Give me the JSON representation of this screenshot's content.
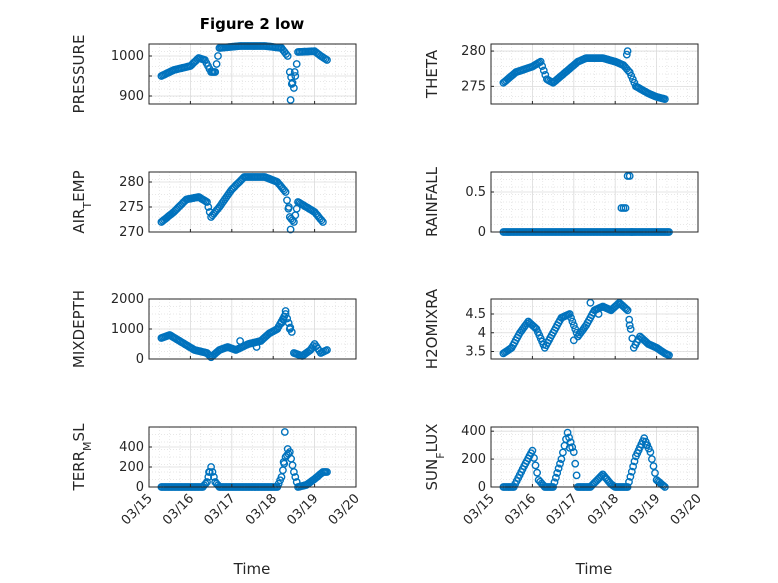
{
  "figure": {
    "title": "Figure 2 low",
    "xlabel": "Time"
  },
  "colors": {
    "marker": "#0072BD",
    "grid": "#e0e0e0",
    "axis": "#262626"
  },
  "chart_data": [
    {
      "type": "scatter",
      "title": "Figure 2 low",
      "ylabel": "PRESSURE",
      "xlabel": "",
      "ylim": [
        880,
        1030
      ],
      "yticks": [
        900,
        950,
        1000
      ],
      "ytick_labels": [
        "900",
        "",
        "1000"
      ],
      "xlim": [
        "03/15",
        "03/20"
      ],
      "xticks": [
        "03/15",
        "03/16",
        "03/17",
        "03/18",
        "03/19",
        "03/20"
      ],
      "show_xtick_labels": false,
      "grid": true,
      "anchors": [
        [
          0.3,
          950
        ],
        [
          0.6,
          965
        ],
        [
          1.0,
          975
        ],
        [
          1.2,
          995
        ],
        [
          1.35,
          990
        ],
        [
          1.5,
          960
        ],
        [
          1.6,
          960
        ],
        [
          1.7,
          1020
        ],
        [
          2.2,
          1025
        ],
        [
          2.8,
          1025
        ],
        [
          3.2,
          1020
        ],
        [
          3.35,
          1000
        ],
        [
          3.4,
          960
        ],
        [
          3.5,
          920
        ],
        [
          3.6,
          1010
        ],
        [
          4.0,
          1012
        ],
        [
          4.15,
          1000
        ],
        [
          4.3,
          990
        ]
      ],
      "extra_points": [
        [
          3.42,
          890
        ],
        [
          3.45,
          930
        ],
        [
          3.52,
          960
        ]
      ]
    },
    {
      "type": "scatter",
      "ylabel": "THETA",
      "ylim": [
        272.5,
        281
      ],
      "yticks": [
        275,
        280
      ],
      "ytick_labels": [
        "275",
        "280"
      ],
      "xlim": [
        "03/15",
        "03/20"
      ],
      "xticks": [
        "03/15",
        "03/16",
        "03/17",
        "03/18",
        "03/19",
        "03/20"
      ],
      "show_xtick_labels": false,
      "grid": true,
      "anchors": [
        [
          0.3,
          275.5
        ],
        [
          0.6,
          277
        ],
        [
          1.0,
          277.8
        ],
        [
          1.2,
          278.5
        ],
        [
          1.35,
          276
        ],
        [
          1.5,
          275.5
        ],
        [
          1.8,
          277
        ],
        [
          2.1,
          278.5
        ],
        [
          2.3,
          279
        ],
        [
          2.7,
          279
        ],
        [
          3.0,
          278.5
        ],
        [
          3.2,
          278
        ],
        [
          3.35,
          277
        ],
        [
          3.5,
          275
        ],
        [
          3.8,
          274
        ],
        [
          4.0,
          273.5
        ],
        [
          4.2,
          273.2
        ]
      ],
      "extra_points": [
        [
          3.3,
          280
        ],
        [
          3.28,
          279.5
        ]
      ]
    },
    {
      "type": "scatter",
      "ylabel": "AIR_TEMP",
      "ylim": [
        270,
        282
      ],
      "yticks": [
        270,
        275,
        280
      ],
      "ytick_labels": [
        "270",
        "275",
        "280"
      ],
      "xlim": [
        "03/15",
        "03/20"
      ],
      "xticks": [
        "03/15",
        "03/16",
        "03/17",
        "03/18",
        "03/19",
        "03/20"
      ],
      "show_xtick_labels": false,
      "grid": true,
      "anchors": [
        [
          0.3,
          272
        ],
        [
          0.6,
          274
        ],
        [
          0.9,
          276.5
        ],
        [
          1.2,
          277
        ],
        [
          1.4,
          276
        ],
        [
          1.5,
          273
        ],
        [
          1.7,
          275
        ],
        [
          2.0,
          278.5
        ],
        [
          2.3,
          281
        ],
        [
          2.8,
          281
        ],
        [
          3.1,
          280
        ],
        [
          3.3,
          278
        ],
        [
          3.4,
          273
        ],
        [
          3.5,
          272
        ],
        [
          3.6,
          276
        ],
        [
          3.8,
          275
        ],
        [
          4.0,
          274
        ],
        [
          4.2,
          272
        ]
      ],
      "extra_points": [
        [
          3.42,
          270.5
        ],
        [
          3.38,
          275
        ]
      ]
    },
    {
      "type": "scatter",
      "ylabel": "RAINFALL",
      "ylim": [
        0,
        0.75
      ],
      "yticks": [
        0,
        0.5
      ],
      "ytick_labels": [
        "0",
        "0.5"
      ],
      "xlim": [
        "03/15",
        "03/20"
      ],
      "xticks": [
        "03/15",
        "03/16",
        "03/17",
        "03/18",
        "03/19",
        "03/20"
      ],
      "show_xtick_labels": false,
      "grid": true,
      "anchors": [
        [
          0.3,
          0
        ],
        [
          3.1,
          0
        ],
        [
          3.2,
          0
        ],
        [
          4.3,
          0
        ]
      ],
      "extra_points": [
        [
          3.15,
          0.3
        ],
        [
          3.2,
          0.3
        ],
        [
          3.25,
          0.3
        ],
        [
          3.3,
          0.7
        ],
        [
          3.35,
          0.7
        ],
        [
          3.4,
          0
        ]
      ]
    },
    {
      "type": "scatter",
      "ylabel": "MIXDEPTH",
      "ylim": [
        0,
        2000
      ],
      "yticks": [
        0,
        1000,
        2000
      ],
      "ytick_labels": [
        "0",
        "1000",
        "2000"
      ],
      "xlim": [
        "03/15",
        "03/20"
      ],
      "xticks": [
        "03/15",
        "03/16",
        "03/17",
        "03/18",
        "03/19",
        "03/20"
      ],
      "show_xtick_labels": false,
      "grid": true,
      "anchors": [
        [
          0.3,
          700
        ],
        [
          0.5,
          800
        ],
        [
          0.8,
          550
        ],
        [
          1.1,
          300
        ],
        [
          1.4,
          200
        ],
        [
          1.5,
          60
        ],
        [
          1.7,
          300
        ],
        [
          1.9,
          400
        ],
        [
          2.1,
          300
        ],
        [
          2.4,
          500
        ],
        [
          2.7,
          600
        ],
        [
          2.9,
          850
        ],
        [
          3.1,
          1000
        ],
        [
          3.3,
          1500
        ],
        [
          3.45,
          900
        ],
        [
          3.5,
          200
        ],
        [
          3.7,
          100
        ],
        [
          3.9,
          300
        ],
        [
          4.0,
          500
        ],
        [
          4.15,
          200
        ],
        [
          4.3,
          300
        ]
      ],
      "extra_points": [
        [
          3.3,
          1600
        ],
        [
          3.25,
          1300
        ],
        [
          3.2,
          1200
        ],
        [
          3.4,
          1000
        ],
        [
          2.2,
          600
        ],
        [
          2.6,
          400
        ]
      ]
    },
    {
      "type": "scatter",
      "ylabel": "H2OMIXRA",
      "ylim": [
        3.3,
        4.9
      ],
      "yticks": [
        3.5,
        4,
        4.5
      ],
      "ytick_labels": [
        "3.5",
        "4",
        "4.5"
      ],
      "xlim": [
        "03/15",
        "03/20"
      ],
      "xticks": [
        "03/15",
        "03/16",
        "03/17",
        "03/18",
        "03/19",
        "03/20"
      ],
      "show_xtick_labels": false,
      "grid": true,
      "anchors": [
        [
          0.3,
          3.45
        ],
        [
          0.5,
          3.6
        ],
        [
          0.7,
          4.0
        ],
        [
          0.9,
          4.3
        ],
        [
          1.1,
          4.1
        ],
        [
          1.3,
          3.6
        ],
        [
          1.5,
          4.0
        ],
        [
          1.7,
          4.4
        ],
        [
          1.9,
          4.5
        ],
        [
          2.1,
          3.9
        ],
        [
          2.3,
          4.2
        ],
        [
          2.5,
          4.6
        ],
        [
          2.7,
          4.7
        ],
        [
          2.9,
          4.6
        ],
        [
          3.1,
          4.8
        ],
        [
          3.3,
          4.6
        ],
        [
          3.45,
          3.6
        ],
        [
          3.6,
          3.9
        ],
        [
          3.8,
          3.7
        ],
        [
          4.0,
          3.6
        ],
        [
          4.2,
          3.45
        ],
        [
          4.3,
          3.4
        ]
      ],
      "extra_points": [
        [
          2.4,
          4.8
        ],
        [
          2.6,
          4.5
        ],
        [
          3.35,
          4.2
        ],
        [
          2.0,
          3.8
        ]
      ]
    },
    {
      "type": "scatter",
      "ylabel": "TERR_MSL",
      "ylim": [
        0,
        600
      ],
      "yticks": [
        0,
        200,
        400
      ],
      "ytick_labels": [
        "0",
        "200",
        "400"
      ],
      "xlim": [
        "03/15",
        "03/20"
      ],
      "xticks": [
        "03/15",
        "03/16",
        "03/17",
        "03/18",
        "03/19",
        "03/20"
      ],
      "show_xtick_labels": true,
      "grid": true,
      "anchors": [
        [
          0.3,
          0
        ],
        [
          1.3,
          0
        ],
        [
          1.4,
          50
        ],
        [
          1.5,
          200
        ],
        [
          1.6,
          50
        ],
        [
          1.7,
          0
        ],
        [
          3.1,
          0
        ],
        [
          3.2,
          100
        ],
        [
          3.3,
          300
        ],
        [
          3.4,
          350
        ],
        [
          3.5,
          150
        ],
        [
          3.6,
          0
        ],
        [
          3.8,
          20
        ],
        [
          4.0,
          80
        ],
        [
          4.2,
          150
        ],
        [
          4.3,
          150
        ]
      ],
      "extra_points": [
        [
          3.28,
          550
        ],
        [
          3.35,
          380
        ],
        [
          3.25,
          250
        ],
        [
          1.45,
          150
        ]
      ]
    },
    {
      "type": "scatter",
      "ylabel": "SUN_FLUX",
      "ylim": [
        0,
        430
      ],
      "yticks": [
        0,
        200,
        400
      ],
      "ytick_labels": [
        "0",
        "200",
        "400"
      ],
      "xlim": [
        "03/15",
        "03/20"
      ],
      "xticks": [
        "03/15",
        "03/16",
        "03/17",
        "03/18",
        "03/19",
        "03/20"
      ],
      "show_xtick_labels": true,
      "grid": true,
      "anchors": [
        [
          0.3,
          0
        ],
        [
          0.55,
          0
        ],
        [
          0.8,
          150
        ],
        [
          1.0,
          260
        ],
        [
          1.15,
          50
        ],
        [
          1.3,
          0
        ],
        [
          1.5,
          0
        ],
        [
          1.7,
          200
        ],
        [
          1.85,
          390
        ],
        [
          2.0,
          250
        ],
        [
          2.1,
          0
        ],
        [
          2.4,
          0
        ],
        [
          2.7,
          90
        ],
        [
          2.9,
          20
        ],
        [
          3.0,
          0
        ],
        [
          3.3,
          0
        ],
        [
          3.5,
          220
        ],
        [
          3.7,
          350
        ],
        [
          3.85,
          250
        ],
        [
          4.0,
          50
        ],
        [
          4.2,
          0
        ]
      ],
      "extra_points": [
        [
          1.9,
          280
        ],
        [
          3.75,
          300
        ]
      ]
    }
  ]
}
